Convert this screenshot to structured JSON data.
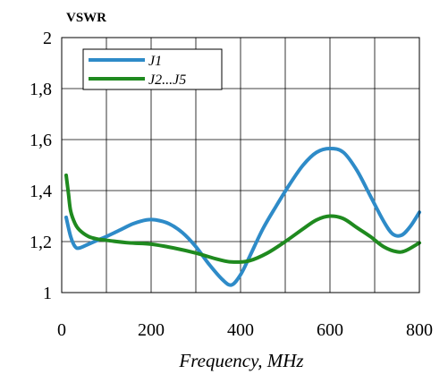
{
  "chart_data": {
    "type": "line",
    "title": "",
    "ylabel": "VSWR",
    "xlabel": "Frequency, MHz",
    "xlim": [
      0,
      800
    ],
    "ylim": [
      1,
      2
    ],
    "x_ticks": [
      0,
      200,
      400,
      600,
      800
    ],
    "x_tick_labels": [
      "0",
      "200",
      "400",
      "600",
      "800"
    ],
    "y_ticks": [
      1,
      1.2,
      1.4,
      1.6,
      1.8,
      2
    ],
    "y_tick_labels": [
      "1",
      "1,2",
      "1,4",
      "1,6",
      "1,8",
      "2"
    ],
    "grid": true,
    "legend_position": "top-left",
    "series": [
      {
        "name": "J1",
        "color": "#2e8bc8",
        "x": [
          10,
          20,
          30,
          40,
          60,
          80,
          100,
          130,
          160,
          190,
          210,
          240,
          270,
          300,
          330,
          360,
          380,
          400,
          420,
          450,
          480,
          510,
          540,
          570,
          600,
          630,
          660,
          690,
          720,
          740,
          760,
          780,
          800
        ],
        "y": [
          1.295,
          1.22,
          1.18,
          1.175,
          1.19,
          1.205,
          1.22,
          1.245,
          1.27,
          1.285,
          1.285,
          1.27,
          1.235,
          1.18,
          1.11,
          1.05,
          1.03,
          1.07,
          1.14,
          1.25,
          1.34,
          1.425,
          1.5,
          1.55,
          1.565,
          1.55,
          1.48,
          1.38,
          1.28,
          1.23,
          1.225,
          1.26,
          1.315
        ]
      },
      {
        "name": "J2...J5",
        "color": "#1f8a1f",
        "x": [
          10,
          15,
          20,
          30,
          40,
          60,
          80,
          100,
          150,
          200,
          250,
          300,
          350,
          380,
          420,
          460,
          500,
          540,
          570,
          600,
          630,
          660,
          690,
          720,
          750,
          770,
          800
        ],
        "y": [
          1.46,
          1.39,
          1.32,
          1.27,
          1.245,
          1.22,
          1.21,
          1.205,
          1.195,
          1.19,
          1.175,
          1.155,
          1.13,
          1.12,
          1.125,
          1.155,
          1.2,
          1.25,
          1.285,
          1.3,
          1.29,
          1.255,
          1.22,
          1.18,
          1.16,
          1.165,
          1.195
        ]
      }
    ]
  }
}
